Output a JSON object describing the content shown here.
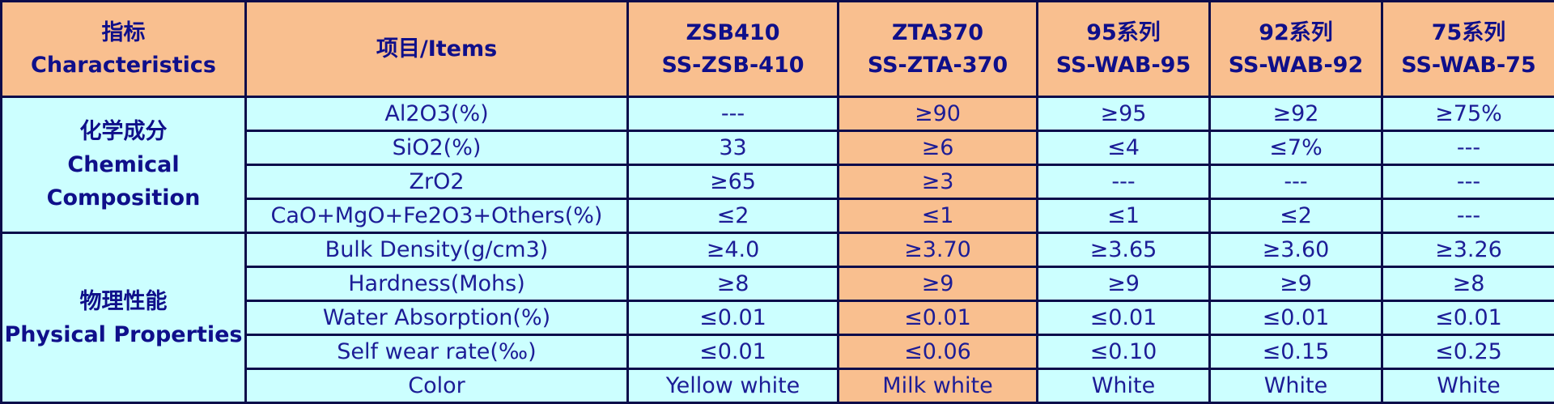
{
  "header": {
    "characteristics_cn": "指标",
    "characteristics_en": "Characteristics",
    "items": "项目/Items",
    "products": [
      {
        "line1": "ZSB410",
        "line2": "SS-ZSB-410"
      },
      {
        "line1": "ZTA370",
        "line2": "SS-ZTA-370"
      },
      {
        "line1": "95系列",
        "line2": "SS-WAB-95"
      },
      {
        "line1": "92系列",
        "line2": "SS-WAB-92"
      },
      {
        "line1": "75系列",
        "line2": "SS-WAB-75"
      }
    ]
  },
  "groups": [
    {
      "name_cn": "化学成分",
      "name_en_1": "Chemical",
      "name_en_2": "Composition",
      "rows": [
        {
          "item": "Al2O3(%)",
          "values": [
            "---",
            "≥90",
            "≥95",
            "≥92",
            "≥75%"
          ]
        },
        {
          "item": "SiO2(%)",
          "values": [
            "33",
            "≥6",
            "≤4",
            "≤7%",
            "---"
          ]
        },
        {
          "item": "ZrO2",
          "values": [
            "≥65",
            "≥3",
            "---",
            "---",
            "---"
          ]
        },
        {
          "item": "CaO+MgO+Fe2O3+Others(%)",
          "values": [
            "≤2",
            "≤1",
            "≤1",
            "≤2",
            "---"
          ]
        }
      ]
    },
    {
      "name_cn": "物理性能",
      "name_en": "Physical Properties",
      "rows": [
        {
          "item": "Bulk Density(g/cm3)",
          "values": [
            "≥4.0",
            "≥3.70",
            "≥3.65",
            "≥3.60",
            "≥3.26"
          ]
        },
        {
          "item": "Hardness(Mohs)",
          "values": [
            "≥8",
            "≥9",
            "≥9",
            "≥9",
            "≥8"
          ]
        },
        {
          "item": "Water Absorption(%)",
          "values": [
            "≤0.01",
            "≤0.01",
            "≤0.01",
            "≤0.01",
            "≤0.01"
          ]
        },
        {
          "item": "Self wear rate(‰)",
          "values": [
            "≤0.01",
            "≤0.06",
            "≤0.10",
            "≤0.15",
            "≤0.25"
          ]
        },
        {
          "item": "Color",
          "values": [
            "Yellow white",
            "Milk white",
            "White",
            "White",
            "White"
          ]
        }
      ]
    }
  ],
  "colors": {
    "header_bg": "#f9bf8f",
    "cell_bg": "#ccffff",
    "highlight_column_bg": "#f9bf8f",
    "text": "#1c1c96",
    "border": "#0c0c4a"
  }
}
